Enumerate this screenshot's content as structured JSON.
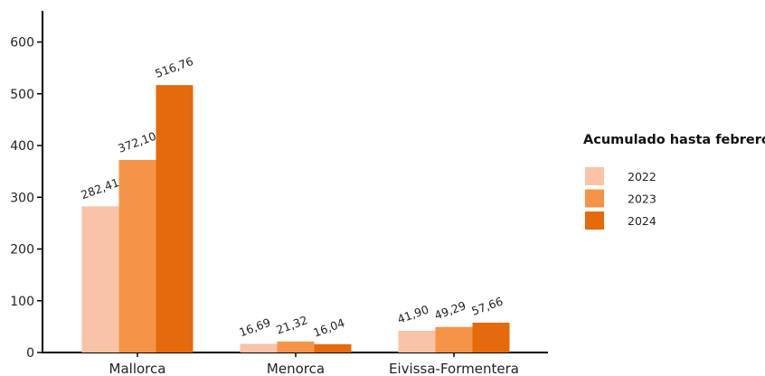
{
  "chart_data": {
    "type": "bar",
    "categories": [
      "Mallorca",
      "Menorca",
      "Eivissa-Formentera"
    ],
    "series": [
      {
        "name": "2022",
        "values": [
          282.41,
          16.69,
          41.9
        ],
        "labels": [
          "282,41",
          "16,69",
          "41,90"
        ],
        "color": "#f8c3a6"
      },
      {
        "name": "2023",
        "values": [
          372.1,
          21.32,
          49.29
        ],
        "labels": [
          "372,10",
          "21,32",
          "49,29"
        ],
        "color": "#f59448"
      },
      {
        "name": "2024",
        "values": [
          516.76,
          16.04,
          57.66
        ],
        "labels": [
          "516,76",
          "16,04",
          "57,66"
        ],
        "color": "#e46a0c"
      }
    ],
    "yticks": [
      0,
      100,
      200,
      300,
      400,
      500,
      600
    ],
    "ylim": [
      0,
      630
    ],
    "title": "",
    "xlabel": "",
    "ylabel": "",
    "legend": {
      "title": "Acumulado hasta febrero",
      "position": "right"
    },
    "grid": false
  }
}
